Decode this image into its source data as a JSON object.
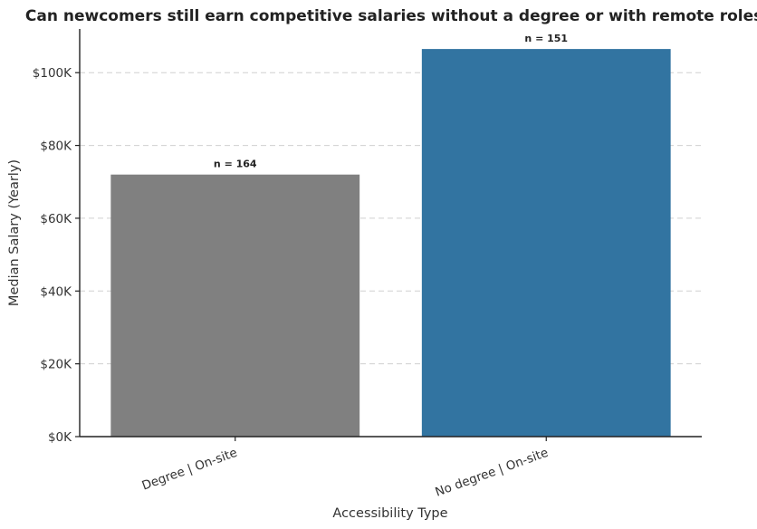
{
  "chart_data": {
    "type": "bar",
    "title": "Can newcomers still earn competitive salaries without a degree or with remote roles?",
    "xlabel": "Accessibility Type",
    "ylabel": "Median Salary (Yearly)",
    "categories": [
      "Degree | On-site",
      "No degree | On-site"
    ],
    "values": [
      72000,
      106500
    ],
    "data_labels": [
      "n = 164",
      "n = 151"
    ],
    "colors": [
      "#808080",
      "#3274a1"
    ],
    "ylim": [
      0,
      112000
    ],
    "yticks": [
      0,
      20000,
      40000,
      60000,
      80000,
      100000
    ],
    "ytick_labels": [
      "$0K",
      "$20K",
      "$40K",
      "$60K",
      "$80K",
      "$100K"
    ],
    "grid": "horizontal dashed",
    "legend": "none"
  }
}
